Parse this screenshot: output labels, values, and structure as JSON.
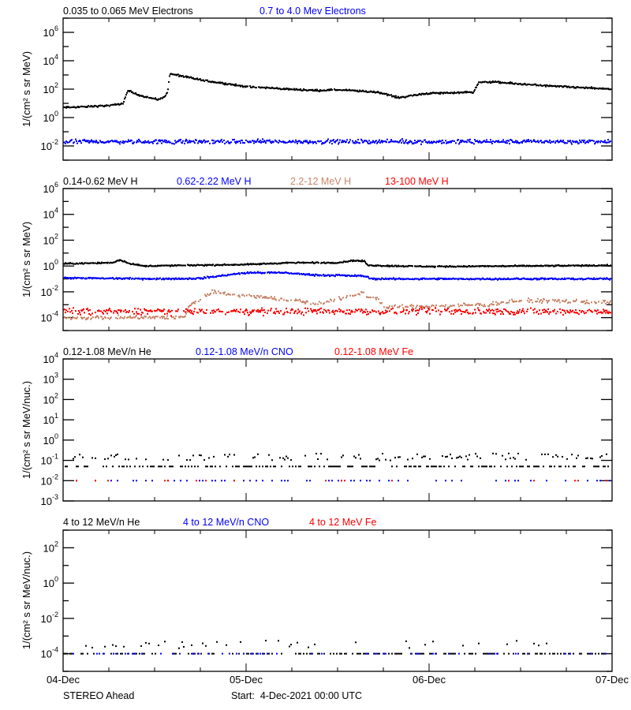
{
  "chart_data": [
    {
      "type": "scatter",
      "ylabel": "1/(cm² s sr MeV)",
      "yscale": "log",
      "ylim": [
        0.001,
        10000000
      ],
      "yticks": [
        0.01,
        1,
        100,
        10000,
        1000000
      ],
      "xlim": [
        "2021-12-04T00:00",
        "2021-12-07T00:00"
      ],
      "series": [
        {
          "name": "0.035 to 0.065 MeV Electrons",
          "color": "#000000",
          "profile": [
            [
              "2021-12-04T00:00",
              5
            ],
            [
              "2021-12-04T06:12",
              7
            ],
            [
              "2021-12-04T07:54",
              10
            ],
            [
              "2021-12-04T08:30",
              80
            ],
            [
              "2021-12-04T09:48",
              40
            ],
            [
              "2021-12-04T12:24",
              18
            ],
            [
              "2021-12-04T13:12",
              25
            ],
            [
              "2021-12-04T13:42",
              60
            ],
            [
              "2021-12-04T14:00",
              1200
            ],
            [
              "2021-12-04T18:36",
              400
            ],
            [
              "2021-12-05T00:00",
              150
            ],
            [
              "2021-12-05T09:06",
              80
            ],
            [
              "2021-12-05T12:12",
              90
            ],
            [
              "2021-12-05T17:24",
              60
            ],
            [
              "2021-12-05T20:00",
              25
            ],
            [
              "2021-12-05T23:36",
              50
            ],
            [
              "2021-12-06T05:48",
              60
            ],
            [
              "2021-12-06T06:30",
              300
            ],
            [
              "2021-12-06T08:24",
              320
            ],
            [
              "2021-12-06T11:00",
              250
            ],
            [
              "2021-12-06T16:06",
              160
            ],
            [
              "2021-12-07T00:00",
              100
            ]
          ]
        },
        {
          "name": "0.7 to 4.0 Mev Electrons",
          "color": "#0000ff",
          "profile": [
            [
              "2021-12-04T00:00",
              0.02
            ],
            [
              "2021-12-07T00:00",
              0.02
            ]
          ]
        }
      ]
    },
    {
      "type": "scatter",
      "ylabel": "1/(cm² s sr MeV)",
      "yscale": "log",
      "ylim": [
        1e-05,
        1000000
      ],
      "yticks": [
        0.0001,
        0.01,
        1,
        100,
        10000,
        1000000
      ],
      "xlim": [
        "2021-12-04T00:00",
        "2021-12-07T00:00"
      ],
      "series": [
        {
          "name": "0.14-0.62 MeV H",
          "color": "#000000",
          "profile": [
            [
              "2021-12-04T00:00",
              1.5
            ],
            [
              "2021-12-04T06:30",
              1.8
            ],
            [
              "2021-12-04T07:30",
              3
            ],
            [
              "2021-12-04T08:30",
              1.7
            ],
            [
              "2021-12-04T10:30",
              1.0
            ],
            [
              "2021-12-05T00:00",
              1.3
            ],
            [
              "2021-12-05T06:00",
              1.8
            ],
            [
              "2021-12-05T12:00",
              1.8
            ],
            [
              "2021-12-05T14:00",
              2.6
            ],
            [
              "2021-12-05T15:30",
              2.4
            ],
            [
              "2021-12-05T16:00",
              1.1
            ],
            [
              "2021-12-06T00:00",
              0.9
            ],
            [
              "2021-12-07T00:00",
              1.1
            ]
          ]
        },
        {
          "name": "0.62-2.22 MeV H",
          "color": "#0000ff",
          "profile": [
            [
              "2021-12-04T00:00",
              0.12
            ],
            [
              "2021-12-04T12:24",
              0.1
            ],
            [
              "2021-12-04T18:00",
              0.11
            ],
            [
              "2021-12-05T00:00",
              0.3
            ],
            [
              "2021-12-05T05:00",
              0.3
            ],
            [
              "2021-12-05T09:00",
              0.2
            ],
            [
              "2021-12-05T15:30",
              0.17
            ],
            [
              "2021-12-05T16:30",
              0.1
            ],
            [
              "2021-12-07T00:00",
              0.1
            ]
          ]
        },
        {
          "name": "2.2-12 MeV H",
          "color": "#c8866a",
          "profile": [
            [
              "2021-12-04T00:00",
              0.0001
            ],
            [
              "2021-12-04T16:00",
              0.0001
            ],
            [
              "2021-12-04T16:30",
              0.0008
            ],
            [
              "2021-12-04T19:30",
              0.01
            ],
            [
              "2021-12-05T00:00",
              0.005
            ],
            [
              "2021-12-05T04:00",
              0.003
            ],
            [
              "2021-12-05T07:00",
              0.002
            ],
            [
              "2021-12-05T09:00",
              0.0012
            ],
            [
              "2021-12-05T14:12",
              0.005
            ],
            [
              "2021-12-05T15:30",
              0.01
            ],
            [
              "2021-12-05T16:00",
              0.004
            ],
            [
              "2021-12-05T17:24",
              0.003
            ],
            [
              "2021-12-05T18:00",
              0.0006
            ],
            [
              "2021-12-06T01:30",
              0.0008
            ],
            [
              "2021-12-06T07:42",
              0.001
            ],
            [
              "2021-12-06T10:48",
              0.002
            ],
            [
              "2021-12-06T16:00",
              0.002
            ],
            [
              "2021-12-07T00:00",
              0.0015
            ]
          ]
        },
        {
          "name": "13-100 MeV H",
          "color": "#ff0000",
          "profile": [
            [
              "2021-12-04T00:00",
              0.0003
            ],
            [
              "2021-12-07T00:00",
              0.0003
            ]
          ]
        }
      ]
    },
    {
      "type": "scatter",
      "ylabel": "1/(cm² s sr MeV/nuc.)",
      "yscale": "log",
      "ylim": [
        0.001,
        10000
      ],
      "yticks": [
        0.001,
        0.01,
        0.1,
        1,
        10,
        100,
        1000,
        10000
      ],
      "xlim": [
        "2021-12-04T00:00",
        "2021-12-07T00:00"
      ],
      "series": [
        {
          "name": "0.12-1.08 MeV/n He",
          "color": "#000000",
          "profile": [
            [
              "2021-12-04T00:00",
              0.05
            ],
            [
              "2021-12-07T00:00",
              0.05
            ]
          ]
        },
        {
          "name": "0.12-1.08 MeV/n CNO",
          "color": "#0000ff",
          "profile": [
            [
              "2021-12-04T00:00",
              0.01
            ],
            [
              "2021-12-07T00:00",
              0.01
            ]
          ]
        },
        {
          "name": "0.12-1.08 MeV Fe",
          "color": "#ff0000",
          "profile": [
            [
              "2021-12-04T00:00",
              0.01
            ],
            [
              "2021-12-07T00:00",
              0.01
            ]
          ]
        }
      ]
    },
    {
      "type": "scatter",
      "ylabel": "1/(cm² s sr MeV/nuc.)",
      "yscale": "log",
      "ylim": [
        1e-05,
        1000
      ],
      "yticks": [
        0.0001,
        0.01,
        1,
        100
      ],
      "xlim": [
        "2021-12-04T00:00",
        "2021-12-07T00:00"
      ],
      "series": [
        {
          "name": "4 to 12 MeV/n He",
          "color": "#000000",
          "profile": [
            [
              "2021-12-04T00:00",
              0.0001
            ],
            [
              "2021-12-07T00:00",
              0.0001
            ]
          ]
        },
        {
          "name": "4 to 12 MeV/n CNO",
          "color": "#0000ff",
          "profile": [
            [
              "2021-12-04T00:00",
              0.0001
            ],
            [
              "2021-12-07T00:00",
              0.0001
            ]
          ]
        },
        {
          "name": "4 to 12 MeV Fe",
          "color": "#ff0000",
          "profile": [
            [
              "2021-12-04T00:00",
              0.0001
            ],
            [
              "2021-12-07T00:00",
              0.0001
            ]
          ]
        }
      ]
    }
  ],
  "x_axis": {
    "tick_labels": [
      "04-Dec",
      "05-Dec",
      "06-Dec",
      "07-Dec"
    ]
  },
  "footer": {
    "spacecraft": "STEREO Ahead",
    "start": "Start:  4-Dec-2021 00:00 UTC"
  }
}
